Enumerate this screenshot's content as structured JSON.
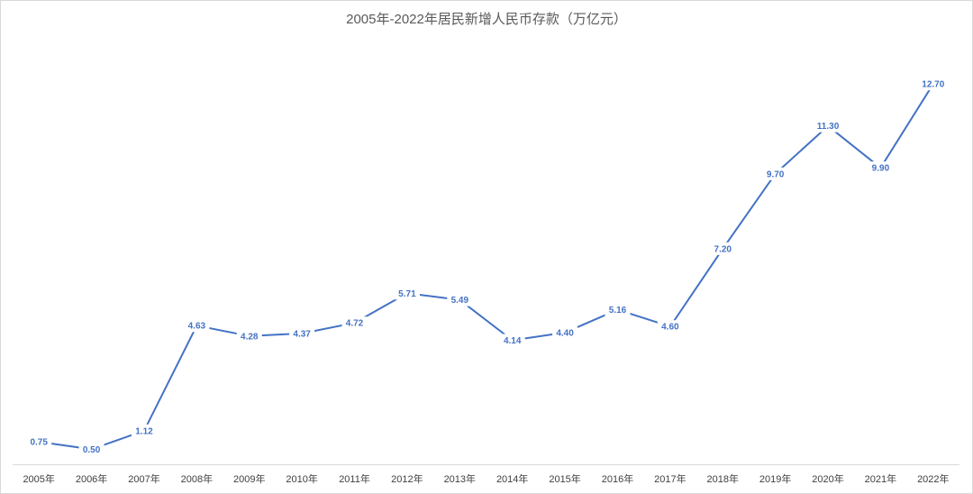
{
  "chart_data": {
    "type": "line",
    "title": "2005年-2022年居民新增人民币存款（万亿元）",
    "categories": [
      "2005年",
      "2006年",
      "2007年",
      "2008年",
      "2009年",
      "2010年",
      "2011年",
      "2012年",
      "2013年",
      "2014年",
      "2015年",
      "2016年",
      "2017年",
      "2018年",
      "2019年",
      "2020年",
      "2021年",
      "2022年"
    ],
    "series": [
      {
        "values": [
          0.75,
          0.5,
          1.12,
          4.63,
          4.28,
          4.37,
          4.72,
          5.71,
          5.49,
          4.14,
          4.4,
          5.16,
          4.6,
          7.2,
          9.7,
          11.3,
          9.9,
          12.7
        ],
        "data_labels": [
          "0.75",
          "0.50",
          "1.12",
          "4.63",
          "4.28",
          "4.37",
          "4.72",
          "5.71",
          "5.49",
          "4.14",
          "4.40",
          "5.16",
          "4.60",
          "7.20",
          "9.70",
          "11.30",
          "9.90",
          "12.70"
        ]
      }
    ],
    "ylim": [
      0,
      14
    ],
    "grid": false,
    "legend": "none",
    "colors": {
      "line": "#4472c4",
      "data_label": "#4472c4",
      "axis": "#d9d9d9",
      "tick_label": "#404040",
      "title": "#595959",
      "frame": "#d9d9d9"
    }
  }
}
